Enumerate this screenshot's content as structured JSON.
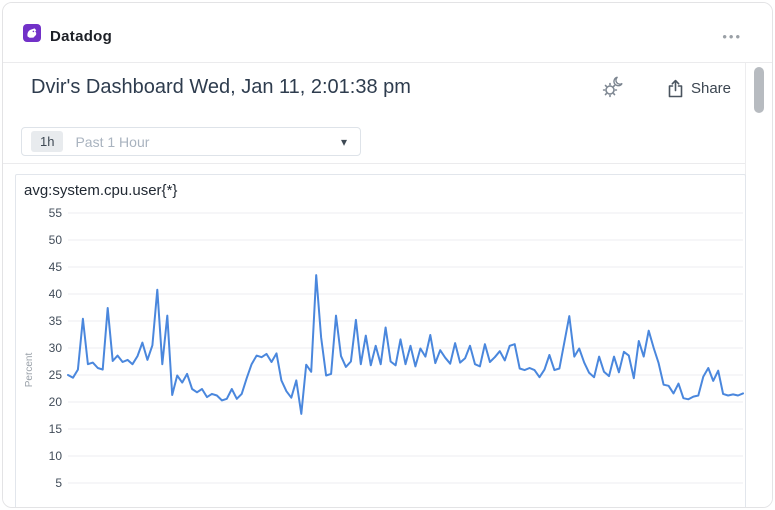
{
  "header": {
    "app_name": "Datadog",
    "more_icon": "•••"
  },
  "toolbar": {
    "title": "Dvir's Dashboard Wed, Jan 11, 2:01:38 pm",
    "share_label": "Share"
  },
  "time_selector": {
    "badge": "1h",
    "label": "Past 1 Hour",
    "caret_icon": "▾"
  },
  "chart_data": {
    "type": "line",
    "title": "avg:system.cpu.user{*}",
    "ylabel": "Percent",
    "xlabel": "",
    "ylim": [
      5,
      55
    ],
    "yticks": [
      55,
      50,
      45,
      40,
      35,
      30,
      25,
      20,
      15,
      10,
      5
    ],
    "grid": true,
    "legend": "none",
    "time_window": "Past 1 Hour",
    "series": [
      {
        "name": "avg:system.cpu.user{*}",
        "color": "#4a87dd",
        "values": [
          25.0,
          24.5,
          26.0,
          35.4,
          27.0,
          27.3,
          26.3,
          26.0,
          37.4,
          27.6,
          28.6,
          27.4,
          27.8,
          27.0,
          28.5,
          31.0,
          27.8,
          30.5,
          40.8,
          27.0,
          36.0,
          21.3,
          24.9,
          23.6,
          25.2,
          22.4,
          21.8,
          22.4,
          20.9,
          21.5,
          21.2,
          20.3,
          20.6,
          22.4,
          20.6,
          21.5,
          24.4,
          27.0,
          28.6,
          28.3,
          28.9,
          27.4,
          29.0,
          24.0,
          22.0,
          20.8,
          24.0,
          17.8,
          26.9,
          25.6,
          43.5,
          32.0,
          24.9,
          25.2,
          36.0,
          28.5,
          26.5,
          27.5,
          35.2,
          27.0,
          32.3,
          26.8,
          30.4,
          27.0,
          33.8,
          27.5,
          26.8,
          31.6,
          27.0,
          30.4,
          26.6,
          29.9,
          28.4,
          32.4,
          27.2,
          29.6,
          28.2,
          27.1,
          30.9,
          27.3,
          28.1,
          30.4,
          27.0,
          26.6,
          30.7,
          27.4,
          28.3,
          29.4,
          27.7,
          30.4,
          30.7,
          26.2,
          25.9,
          26.3,
          25.9,
          24.6,
          26.0,
          28.7,
          25.9,
          26.2,
          31.0,
          35.9,
          28.4,
          29.9,
          27.3,
          25.4,
          24.6,
          28.4,
          25.6,
          24.8,
          28.4,
          25.5,
          29.3,
          28.6,
          24.4,
          31.3,
          28.4,
          33.2,
          30.0,
          27.2,
          23.2,
          23.0,
          21.6,
          23.4,
          20.7,
          20.5,
          21.0,
          21.2,
          24.7,
          26.3,
          23.9,
          25.8,
          21.5,
          21.2,
          21.4,
          21.2,
          21.6
        ]
      }
    ]
  },
  "colors": {
    "brand_purple": "#7231c8",
    "line_blue": "#4a87dd",
    "grid_line": "#eceef1",
    "tick_text": "#414c59",
    "axis_label": "#99a0a8"
  }
}
